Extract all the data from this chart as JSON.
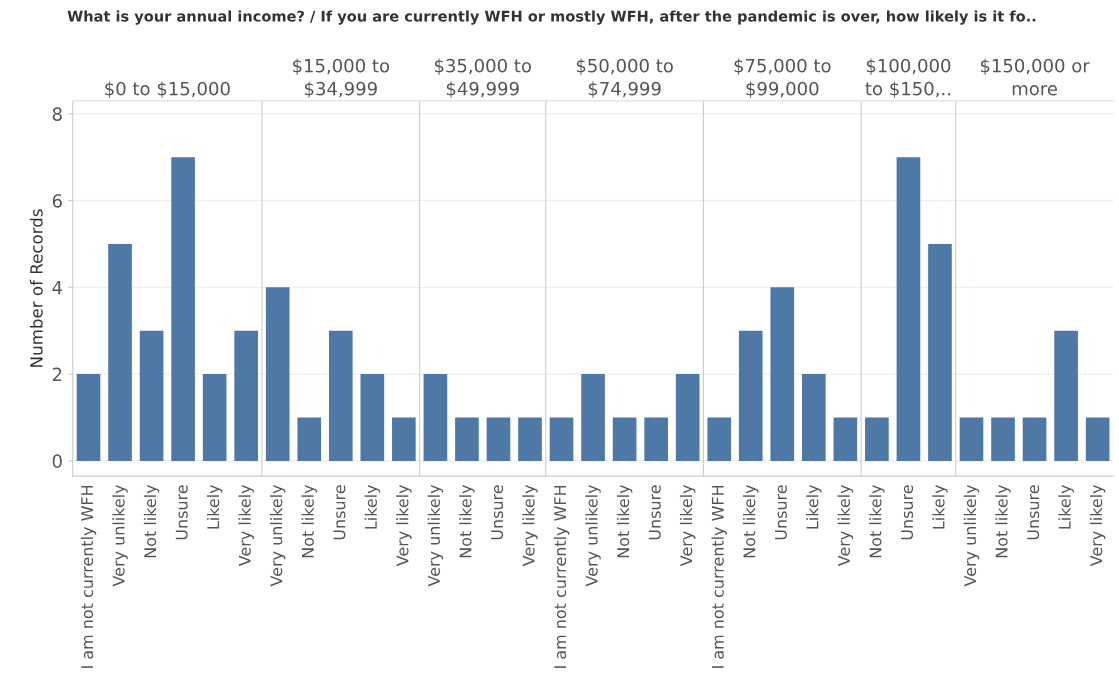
{
  "chart_data": [
    {
      "type": "bar",
      "title": "$0 to $15,000",
      "annotations": [
        "What is your annual income? / If you are currently WFH or mostly WFH, after the pandemic is over, how likely is it fo.."
      ],
      "ylabel": "Number of Records",
      "categories": [
        "I am not currently WFH",
        "Very unlikely",
        "Not likely",
        "Unsure",
        "Likely",
        "Very likely"
      ],
      "values": [
        2,
        5,
        3,
        7,
        2,
        3
      ],
      "color": "#4e79a7",
      "ylim": [
        -0.35,
        8.3
      ],
      "yticks": [
        0,
        2,
        4,
        6,
        8
      ],
      "grid": "y"
    },
    {
      "type": "bar",
      "title": "$15,000 to\n$34,999",
      "categories": [
        "Very unlikely",
        "Not likely",
        "Unsure",
        "Likely",
        "Very likely"
      ],
      "values": [
        4,
        1,
        3,
        2,
        1
      ],
      "color": "#4e79a7",
      "ylim": [
        -0.35,
        8.3
      ],
      "yticks": [
        0,
        2,
        4,
        6,
        8
      ],
      "grid": "y",
      "tick_labels": "x"
    },
    {
      "type": "bar",
      "title": "$35,000 to\n$49,999",
      "categories": [
        "Very unlikely",
        "Not likely",
        "Unsure",
        "Very likely"
      ],
      "values": [
        2,
        1,
        1,
        1
      ],
      "color": "#4e79a7",
      "ylim": [
        -0.35,
        8.3
      ],
      "yticks": [
        0,
        2,
        4,
        6,
        8
      ],
      "grid": "y",
      "tick_labels": "x"
    },
    {
      "type": "bar",
      "title": "$50,000 to\n$74,999",
      "categories": [
        "I am not currently WFH",
        "Very unlikely",
        "Not likely",
        "Unsure",
        "Very likely"
      ],
      "values": [
        1,
        2,
        1,
        1,
        2
      ],
      "color": "#4e79a7",
      "ylim": [
        -0.35,
        8.3
      ],
      "yticks": [
        0,
        2,
        4,
        6,
        8
      ],
      "grid": "y",
      "tick_labels": "x"
    },
    {
      "type": "bar",
      "title": "$75,000 to\n$99,000",
      "categories": [
        "I am not currently WFH",
        "Not likely",
        "Unsure",
        "Likely",
        "Very likely"
      ],
      "values": [
        1,
        3,
        4,
        2,
        1
      ],
      "color": "#4e79a7",
      "ylim": [
        -0.35,
        8.3
      ],
      "yticks": [
        0,
        2,
        4,
        6,
        8
      ],
      "grid": "y",
      "tick_labels": "x"
    },
    {
      "type": "bar",
      "title": "$100,000\nto $150,..",
      "categories": [
        "Not likely",
        "Unsure",
        "Likely"
      ],
      "values": [
        1,
        7,
        5
      ],
      "color": "#4e79a7",
      "ylim": [
        -0.35,
        8.3
      ],
      "yticks": [
        0,
        2,
        4,
        6,
        8
      ],
      "grid": "y",
      "tick_labels": "x"
    },
    {
      "type": "bar",
      "title": "$150,000 or\nmore",
      "categories": [
        "Very unlikely",
        "Not likely",
        "Unsure",
        "Likely",
        "Very likely"
      ],
      "values": [
        1,
        1,
        1,
        3,
        1
      ],
      "color": "#4e79a7",
      "ylim": [
        -0.35,
        8.3
      ],
      "yticks": [
        0,
        2,
        4,
        6,
        8
      ],
      "grid": "y",
      "tick_labels": "x"
    }
  ]
}
